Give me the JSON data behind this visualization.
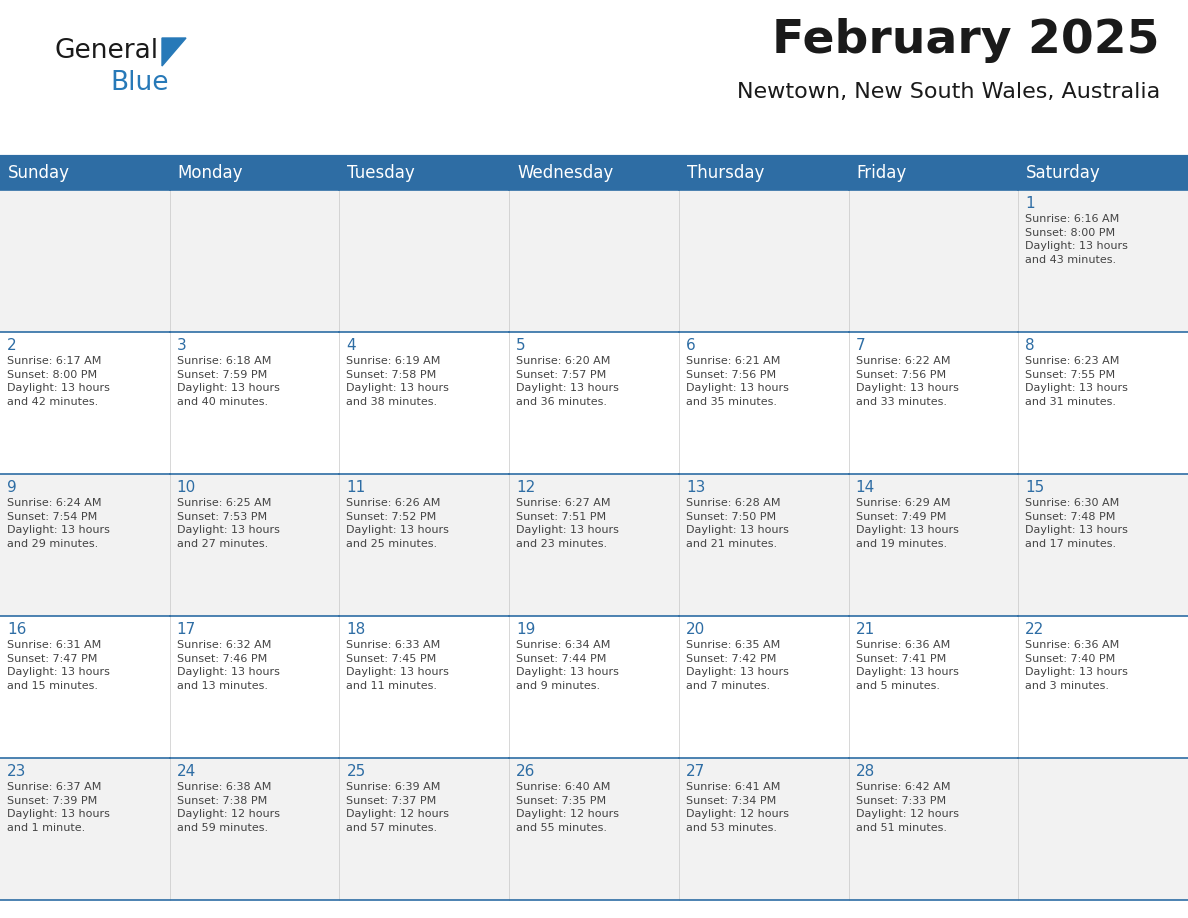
{
  "title": "February 2025",
  "subtitle": "Newtown, New South Wales, Australia",
  "header_bg": "#2E6DA4",
  "header_text_color": "#FFFFFF",
  "cell_bg_even": "#F2F2F2",
  "cell_bg_odd": "#FFFFFF",
  "day_number_color": "#2E6DA4",
  "info_text_color": "#444444",
  "border_color": "#2E6DA4",
  "days_of_week": [
    "Sunday",
    "Monday",
    "Tuesday",
    "Wednesday",
    "Thursday",
    "Friday",
    "Saturday"
  ],
  "weeks": [
    [
      {
        "day": null,
        "info": ""
      },
      {
        "day": null,
        "info": ""
      },
      {
        "day": null,
        "info": ""
      },
      {
        "day": null,
        "info": ""
      },
      {
        "day": null,
        "info": ""
      },
      {
        "day": null,
        "info": ""
      },
      {
        "day": 1,
        "info": "Sunrise: 6:16 AM\nSunset: 8:00 PM\nDaylight: 13 hours\nand 43 minutes."
      }
    ],
    [
      {
        "day": 2,
        "info": "Sunrise: 6:17 AM\nSunset: 8:00 PM\nDaylight: 13 hours\nand 42 minutes."
      },
      {
        "day": 3,
        "info": "Sunrise: 6:18 AM\nSunset: 7:59 PM\nDaylight: 13 hours\nand 40 minutes."
      },
      {
        "day": 4,
        "info": "Sunrise: 6:19 AM\nSunset: 7:58 PM\nDaylight: 13 hours\nand 38 minutes."
      },
      {
        "day": 5,
        "info": "Sunrise: 6:20 AM\nSunset: 7:57 PM\nDaylight: 13 hours\nand 36 minutes."
      },
      {
        "day": 6,
        "info": "Sunrise: 6:21 AM\nSunset: 7:56 PM\nDaylight: 13 hours\nand 35 minutes."
      },
      {
        "day": 7,
        "info": "Sunrise: 6:22 AM\nSunset: 7:56 PM\nDaylight: 13 hours\nand 33 minutes."
      },
      {
        "day": 8,
        "info": "Sunrise: 6:23 AM\nSunset: 7:55 PM\nDaylight: 13 hours\nand 31 minutes."
      }
    ],
    [
      {
        "day": 9,
        "info": "Sunrise: 6:24 AM\nSunset: 7:54 PM\nDaylight: 13 hours\nand 29 minutes."
      },
      {
        "day": 10,
        "info": "Sunrise: 6:25 AM\nSunset: 7:53 PM\nDaylight: 13 hours\nand 27 minutes."
      },
      {
        "day": 11,
        "info": "Sunrise: 6:26 AM\nSunset: 7:52 PM\nDaylight: 13 hours\nand 25 minutes."
      },
      {
        "day": 12,
        "info": "Sunrise: 6:27 AM\nSunset: 7:51 PM\nDaylight: 13 hours\nand 23 minutes."
      },
      {
        "day": 13,
        "info": "Sunrise: 6:28 AM\nSunset: 7:50 PM\nDaylight: 13 hours\nand 21 minutes."
      },
      {
        "day": 14,
        "info": "Sunrise: 6:29 AM\nSunset: 7:49 PM\nDaylight: 13 hours\nand 19 minutes."
      },
      {
        "day": 15,
        "info": "Sunrise: 6:30 AM\nSunset: 7:48 PM\nDaylight: 13 hours\nand 17 minutes."
      }
    ],
    [
      {
        "day": 16,
        "info": "Sunrise: 6:31 AM\nSunset: 7:47 PM\nDaylight: 13 hours\nand 15 minutes."
      },
      {
        "day": 17,
        "info": "Sunrise: 6:32 AM\nSunset: 7:46 PM\nDaylight: 13 hours\nand 13 minutes."
      },
      {
        "day": 18,
        "info": "Sunrise: 6:33 AM\nSunset: 7:45 PM\nDaylight: 13 hours\nand 11 minutes."
      },
      {
        "day": 19,
        "info": "Sunrise: 6:34 AM\nSunset: 7:44 PM\nDaylight: 13 hours\nand 9 minutes."
      },
      {
        "day": 20,
        "info": "Sunrise: 6:35 AM\nSunset: 7:42 PM\nDaylight: 13 hours\nand 7 minutes."
      },
      {
        "day": 21,
        "info": "Sunrise: 6:36 AM\nSunset: 7:41 PM\nDaylight: 13 hours\nand 5 minutes."
      },
      {
        "day": 22,
        "info": "Sunrise: 6:36 AM\nSunset: 7:40 PM\nDaylight: 13 hours\nand 3 minutes."
      }
    ],
    [
      {
        "day": 23,
        "info": "Sunrise: 6:37 AM\nSunset: 7:39 PM\nDaylight: 13 hours\nand 1 minute."
      },
      {
        "day": 24,
        "info": "Sunrise: 6:38 AM\nSunset: 7:38 PM\nDaylight: 12 hours\nand 59 minutes."
      },
      {
        "day": 25,
        "info": "Sunrise: 6:39 AM\nSunset: 7:37 PM\nDaylight: 12 hours\nand 57 minutes."
      },
      {
        "day": 26,
        "info": "Sunrise: 6:40 AM\nSunset: 7:35 PM\nDaylight: 12 hours\nand 55 minutes."
      },
      {
        "day": 27,
        "info": "Sunrise: 6:41 AM\nSunset: 7:34 PM\nDaylight: 12 hours\nand 53 minutes."
      },
      {
        "day": 28,
        "info": "Sunrise: 6:42 AM\nSunset: 7:33 PM\nDaylight: 12 hours\nand 51 minutes."
      },
      {
        "day": null,
        "info": ""
      }
    ]
  ],
  "logo_text1": "General",
  "logo_text2": "Blue",
  "logo_color1": "#1a1a1a",
  "logo_color2": "#2779B8",
  "title_fontsize": 34,
  "subtitle_fontsize": 16,
  "header_fontsize": 12,
  "day_num_fontsize": 11,
  "info_fontsize": 8.0,
  "fig_width": 11.88,
  "fig_height": 9.18,
  "dpi": 100
}
